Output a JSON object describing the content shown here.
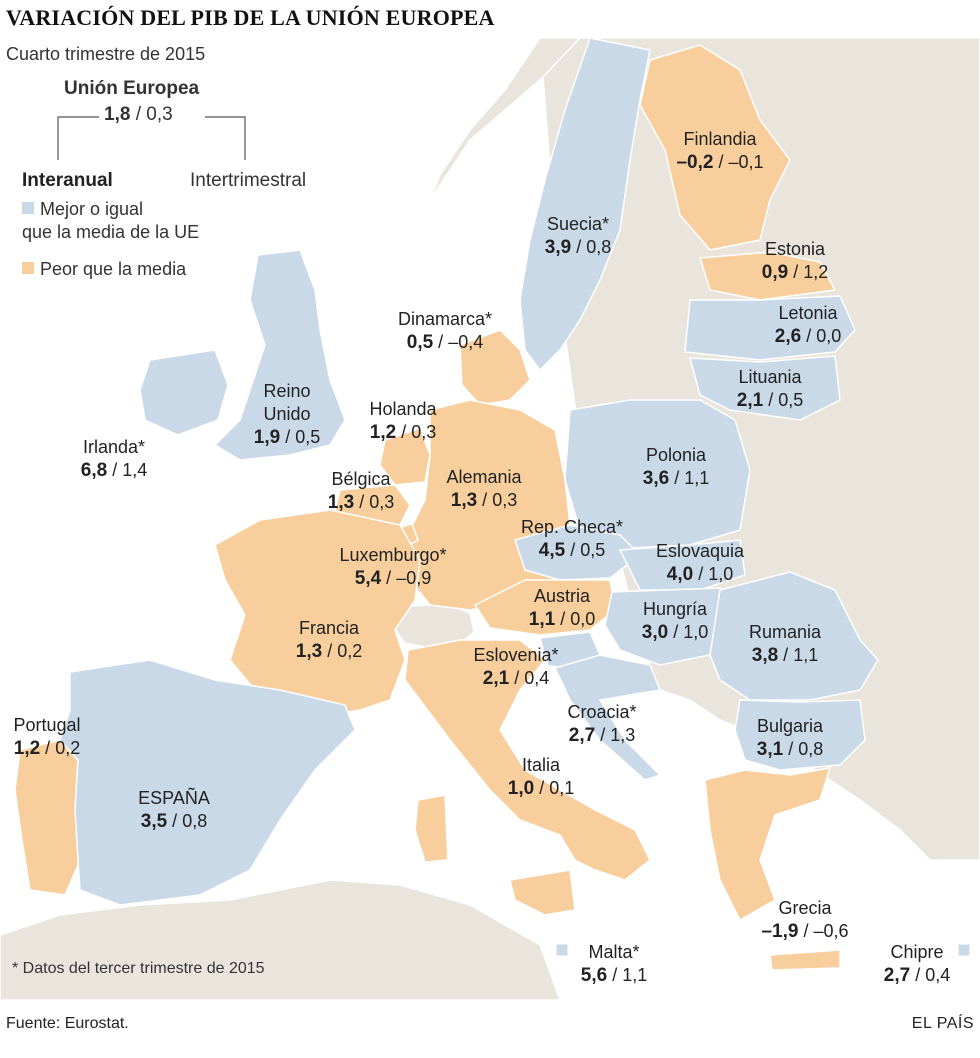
{
  "title": "VARIACIÓN DEL PIB DE LA UNIÓN EUROPEA",
  "subtitle": "Cuarto trimestre de 2015",
  "eu": {
    "name": "Unión Europea",
    "annual": "1,8",
    "quarterly": "0,3"
  },
  "legend": {
    "annual_label": "Interanual",
    "quarterly_label": "Intertrimestral",
    "better": "Mejor o igual",
    "better2": "que la media de la UE",
    "worse": "Peor que la media"
  },
  "colors": {
    "better": "#c9d9e8",
    "worse": "#f8cf9c",
    "other": "#e9e4dc",
    "sea": "#ffffff"
  },
  "countries": [
    {
      "key": "finlandia",
      "name": "Finlandia",
      "annual": "–0,2",
      "quarterly": "–0,1",
      "status": "worse"
    },
    {
      "key": "suecia",
      "name": "Suecia*",
      "annual": "3,9",
      "quarterly": "0,8",
      "status": "better"
    },
    {
      "key": "estonia",
      "name": "Estonia",
      "annual": "0,9",
      "quarterly": "1,2",
      "status": "worse"
    },
    {
      "key": "letonia",
      "name": "Letonia",
      "annual": "2,6",
      "quarterly": "0,0",
      "status": "better"
    },
    {
      "key": "lituania",
      "name": "Lituania",
      "annual": "2,1",
      "quarterly": "0,5",
      "status": "better"
    },
    {
      "key": "dinamarca",
      "name": "Dinamarca*",
      "annual": "0,5",
      "quarterly": "–0,4",
      "status": "worse"
    },
    {
      "key": "reino-unido",
      "name": "Reino\nUnido",
      "annual": "1,9",
      "quarterly": "0,5",
      "status": "better"
    },
    {
      "key": "irlanda",
      "name": "Irlanda*",
      "annual": "6,8",
      "quarterly": "1,4",
      "status": "better"
    },
    {
      "key": "holanda",
      "name": "Holanda",
      "annual": "1,2",
      "quarterly": "0,3",
      "status": "worse"
    },
    {
      "key": "belgica",
      "name": "Bélgica",
      "annual": "1,3",
      "quarterly": "0,3",
      "status": "worse"
    },
    {
      "key": "alemania",
      "name": "Alemania",
      "annual": "1,3",
      "quarterly": "0,3",
      "status": "worse"
    },
    {
      "key": "polonia",
      "name": "Polonia",
      "annual": "3,6",
      "quarterly": "1,1",
      "status": "better"
    },
    {
      "key": "rep-checa",
      "name": "Rep. Checa*",
      "annual": "4,5",
      "quarterly": "0,5",
      "status": "better"
    },
    {
      "key": "luxemburgo",
      "name": "Luxemburgo*",
      "annual": "5,4",
      "quarterly": "–0,9",
      "status": "worse"
    },
    {
      "key": "eslovaquia",
      "name": "Eslovaquia",
      "annual": "4,0",
      "quarterly": "1,0",
      "status": "better"
    },
    {
      "key": "austria",
      "name": "Austria",
      "annual": "1,1",
      "quarterly": "0,0",
      "status": "worse"
    },
    {
      "key": "hungria",
      "name": "Hungría",
      "annual": "3,0",
      "quarterly": "1,0",
      "status": "better"
    },
    {
      "key": "francia",
      "name": "Francia",
      "annual": "1,3",
      "quarterly": "0,2",
      "status": "worse"
    },
    {
      "key": "rumania",
      "name": "Rumania",
      "annual": "3,8",
      "quarterly": "1,1",
      "status": "better"
    },
    {
      "key": "eslovenia",
      "name": "Eslovenia*",
      "annual": "2,1",
      "quarterly": "0,4",
      "status": "better"
    },
    {
      "key": "croacia",
      "name": "Croacia*",
      "annual": "2,7",
      "quarterly": "1,3",
      "status": "better"
    },
    {
      "key": "portugal",
      "name": "Portugal",
      "annual": "1,2",
      "quarterly": "0,2",
      "status": "worse"
    },
    {
      "key": "bulgaria",
      "name": "Bulgaria",
      "annual": "3,1",
      "quarterly": "0,8",
      "status": "better"
    },
    {
      "key": "italia",
      "name": "Italia",
      "annual": "1,0",
      "quarterly": "0,1",
      "status": "worse"
    },
    {
      "key": "espana",
      "name": "ESPAÑA",
      "annual": "3,5",
      "quarterly": "0,8",
      "status": "better"
    },
    {
      "key": "grecia",
      "name": "Grecia",
      "annual": "–1,9",
      "quarterly": "–0,6",
      "status": "worse"
    },
    {
      "key": "malta",
      "name": "Malta*",
      "annual": "5,6",
      "quarterly": "1,1",
      "status": "better"
    },
    {
      "key": "chipre",
      "name": "Chipre",
      "annual": "2,7",
      "quarterly": "0,4",
      "status": "better"
    }
  ],
  "footnote": "* Datos del tercer trimestre de 2015",
  "source": "Fuente: Eurostat.",
  "brand": "EL PAÍS"
}
